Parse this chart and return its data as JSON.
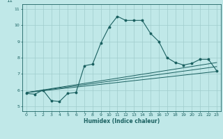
{
  "title": "11",
  "xlabel": "Humidex (Indice chaleur)",
  "background_color": "#c0e8e8",
  "grid_color": "#a0cccc",
  "line_color": "#1a6060",
  "xlim": [
    -0.5,
    23.5
  ],
  "ylim": [
    4.7,
    11.3
  ],
  "xticks": [
    0,
    1,
    2,
    3,
    4,
    5,
    6,
    7,
    8,
    9,
    10,
    11,
    12,
    13,
    14,
    15,
    16,
    17,
    18,
    19,
    20,
    21,
    22,
    23
  ],
  "yticks": [
    5,
    6,
    7,
    8,
    9,
    10,
    11
  ],
  "series1_x": [
    0,
    1,
    2,
    3,
    4,
    5,
    6,
    7,
    8,
    9,
    10,
    11,
    12,
    13,
    14,
    15,
    16,
    17,
    18,
    19,
    20,
    21,
    22,
    23
  ],
  "series1_y": [
    5.8,
    5.75,
    6.0,
    5.35,
    5.3,
    5.8,
    5.85,
    7.5,
    7.6,
    8.9,
    9.9,
    10.55,
    10.3,
    10.3,
    10.3,
    9.5,
    9.0,
    8.0,
    7.7,
    7.55,
    7.65,
    7.9,
    7.9,
    7.2
  ],
  "line1_x": [
    0,
    23
  ],
  "line1_y": [
    5.85,
    7.7
  ],
  "line2_x": [
    0,
    23
  ],
  "line2_y": [
    5.85,
    7.45
  ],
  "line3_x": [
    0,
    23
  ],
  "line3_y": [
    5.85,
    7.15
  ]
}
